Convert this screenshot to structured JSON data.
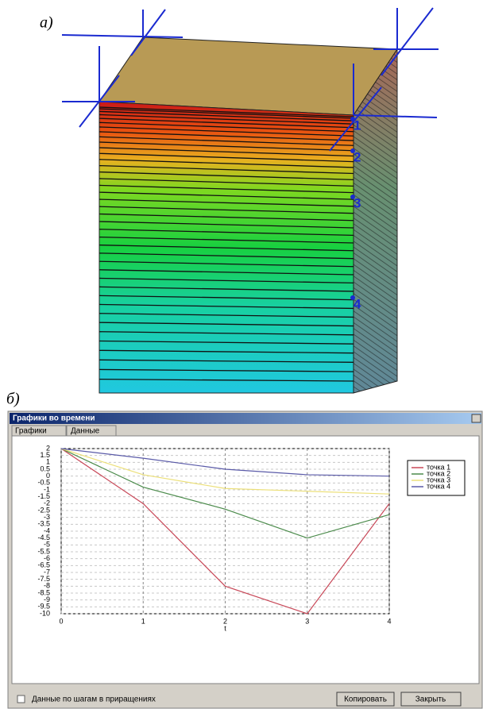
{
  "figure": {
    "label_a": "a)",
    "label_b": "б)",
    "points": [
      "1",
      "2",
      "3",
      "4"
    ]
  },
  "window": {
    "title": "Графики во времени",
    "tabs": [
      "Графики",
      "Данные"
    ],
    "checkbox_label": "Данные по шагам в приращениях",
    "buttons": [
      "Копировать",
      "Закрыть"
    ]
  },
  "chart_data": {
    "type": "line",
    "x_label": "t",
    "x": [
      0,
      1,
      2,
      3,
      4
    ],
    "xlim": [
      0,
      4
    ],
    "xticks": [
      0,
      1,
      2,
      3,
      4
    ],
    "ylim": [
      -10,
      2
    ],
    "yticks": [
      2,
      1.5,
      1,
      0.5,
      0,
      -0.5,
      -1,
      -1.5,
      -2,
      -2.5,
      -3,
      -3.5,
      -4,
      -4.5,
      -5,
      -5.5,
      -6,
      -6.5,
      -7,
      -7.5,
      -8,
      -8.5,
      -9,
      -9.5,
      -10
    ],
    "grid": true,
    "legend": "right",
    "series": [
      {
        "name": "точка 1",
        "color": "#c84858",
        "values": [
          2,
          -2,
          -8,
          -10,
          -2
        ]
      },
      {
        "name": "точка 2",
        "color": "#4a8a4a",
        "values": [
          2,
          -0.8,
          -2.4,
          -4.5,
          -2.8
        ]
      },
      {
        "name": "точка 3",
        "color": "#ece07a",
        "values": [
          2,
          0.1,
          -0.9,
          -1.1,
          -1.3
        ]
      },
      {
        "name": "точка 4",
        "color": "#5a5aa8",
        "values": [
          2,
          1.3,
          0.5,
          0.1,
          0
        ]
      }
    ]
  }
}
